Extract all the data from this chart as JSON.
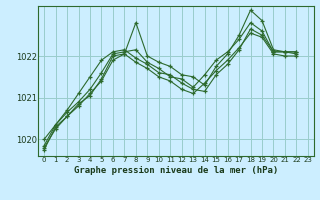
{
  "title": "Graphe pression niveau de la mer (hPa)",
  "bg_color": "#cceeff",
  "grid_color": "#99cccc",
  "line_color": "#2d6a2d",
  "ylim": [
    1019.6,
    1023.2
  ],
  "yticks": [
    1020,
    1021,
    1022
  ],
  "xlim": [
    -0.5,
    23.5
  ],
  "xticks": [
    0,
    1,
    2,
    3,
    4,
    5,
    6,
    7,
    8,
    9,
    10,
    11,
    12,
    13,
    14,
    15,
    16,
    17,
    18,
    19,
    20,
    21,
    22,
    23
  ],
  "series": [
    [
      1019.75,
      1020.3,
      1020.55,
      1020.85,
      1021.05,
      1021.45,
      1022.0,
      1022.05,
      1022.8,
      1022.0,
      1021.85,
      1021.75,
      1021.55,
      1021.5,
      1021.3,
      1021.75,
      1022.05,
      1022.5,
      1023.1,
      1022.85,
      1022.15,
      1022.1,
      1022.1
    ],
    [
      1020.0,
      1020.35,
      1020.65,
      1020.9,
      1021.2,
      1021.6,
      1022.05,
      1022.1,
      1022.15,
      1021.85,
      1021.7,
      1021.5,
      1021.45,
      1021.25,
      1021.55,
      1021.9,
      1022.1,
      1022.4,
      1022.8,
      1022.6,
      1022.1,
      1022.1,
      1022.05
    ],
    [
      1019.85,
      1020.35,
      1020.7,
      1021.1,
      1021.5,
      1021.9,
      1022.1,
      1022.15,
      1021.95,
      1021.8,
      1021.6,
      1021.55,
      1021.35,
      1021.2,
      1021.15,
      1021.55,
      1021.8,
      1022.15,
      1022.65,
      1022.5,
      1022.1,
      1022.1,
      1022.1
    ],
    [
      1019.8,
      1020.25,
      1020.55,
      1020.8,
      1021.1,
      1021.4,
      1021.9,
      1022.05,
      1021.85,
      1021.7,
      1021.5,
      1021.4,
      1021.2,
      1021.1,
      1021.35,
      1021.65,
      1021.9,
      1022.2,
      1022.55,
      1022.45,
      1022.05,
      1022.0,
      1022.0
    ]
  ]
}
